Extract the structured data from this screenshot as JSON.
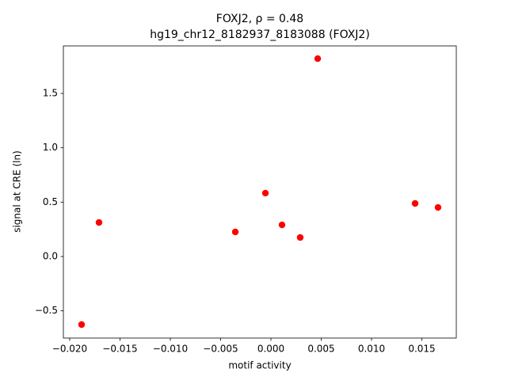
{
  "chart_data": {
    "type": "scatter",
    "title": "FOXJ2, ρ = 0.48",
    "subtitle": "hg19_chr12_8182937_8183088 (FOXJ2)",
    "x_label": "motif activity",
    "y_label": "signal at CRE (ln)",
    "color": "#ff0000",
    "x": [
      -0.01882,
      -0.01709,
      -0.00354,
      -0.00055,
      0.0011,
      0.00291,
      0.00465,
      0.01433,
      0.01661
    ],
    "y": [
      -0.626,
      0.313,
      0.226,
      0.583,
      0.291,
      0.175,
      1.82,
      0.488,
      0.451
    ],
    "xlim": [
      -0.02063,
      0.018425
    ],
    "ylim": [
      -0.75,
      1.937
    ],
    "xticks": [
      {
        "value": -0.02,
        "label": "−0.020"
      },
      {
        "value": -0.015,
        "label": "−0.015"
      },
      {
        "value": -0.01,
        "label": "−0.010"
      },
      {
        "value": -0.005,
        "label": "−0.005"
      },
      {
        "value": 0,
        "label": "0.000"
      },
      {
        "value": 0.005,
        "label": "0.005"
      },
      {
        "value": 0.01,
        "label": "0.010"
      },
      {
        "value": 0.015,
        "label": "0.015"
      }
    ],
    "yticks": [
      {
        "value": -0.5,
        "label": "−0.5"
      },
      {
        "value": 0,
        "label": "0.0"
      },
      {
        "value": 0.5,
        "label": "0.5"
      },
      {
        "value": 1,
        "label": "1.0"
      },
      {
        "value": 1.5,
        "label": "1.5"
      }
    ]
  }
}
